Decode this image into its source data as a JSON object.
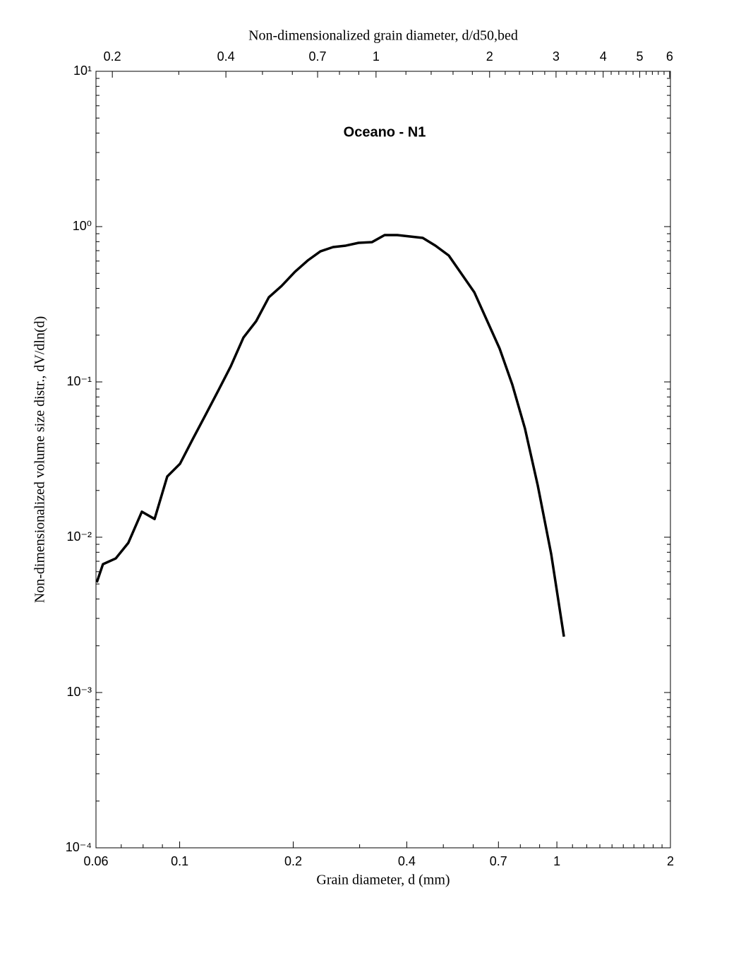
{
  "chart_data": {
    "type": "line",
    "title": "Oceano - N1",
    "xlabel": "Grain diameter, d (mm)",
    "x2label": "Non-dimensionalized grain diameter, d/d50,bed",
    "ylabel": "Non-dimensionalized volume size distr., dV/dln(d)",
    "xscale": "log",
    "yscale": "log",
    "xlim": [
      0.06,
      2
    ],
    "xticks": [
      0.06,
      0.1,
      0.2,
      0.4,
      0.7,
      1,
      2
    ],
    "xminorticks": [
      0.07,
      0.08,
      0.09,
      0.3,
      0.5,
      0.6,
      0.8,
      0.9,
      1.1,
      1.2,
      1.3,
      1.4,
      1.5,
      1.6,
      1.7,
      1.8,
      1.9
    ],
    "x2lim": [
      0.181,
      6.03
    ],
    "x2ticks": [
      0.2,
      0.4,
      0.7,
      1,
      2,
      3,
      4,
      5,
      6
    ],
    "x2minorticks": [
      0.3,
      0.5,
      0.6,
      0.8,
      0.9,
      1.2,
      1.4,
      1.6,
      1.8,
      2.2,
      2.4,
      2.6,
      2.8,
      3.2,
      3.4,
      3.6,
      3.8,
      4.2,
      4.4,
      4.6,
      4.8,
      5.2,
      5.4,
      5.6,
      5.8
    ],
    "ylim": [
      0.0001,
      10
    ],
    "yticks": [
      {
        "value": 0.0001,
        "label": "10⁻⁴"
      },
      {
        "value": 0.001,
        "label": "10⁻³"
      },
      {
        "value": 0.01,
        "label": "10⁻²"
      },
      {
        "value": 0.1,
        "label": "10⁻¹"
      },
      {
        "value": 1,
        "label": "10⁰"
      },
      {
        "value": 10,
        "label": "10¹"
      }
    ],
    "yminorticks": [
      0.0002,
      0.0003,
      0.0004,
      0.0005,
      0.0006,
      0.0007,
      0.0008,
      0.0009,
      0.002,
      0.003,
      0.004,
      0.005,
      0.006,
      0.007,
      0.008,
      0.009,
      0.02,
      0.03,
      0.04,
      0.05,
      0.06,
      0.07,
      0.08,
      0.09,
      0.2,
      0.3,
      0.4,
      0.5,
      0.6,
      0.7,
      0.8,
      0.9,
      2,
      3,
      4,
      5,
      6,
      7,
      8,
      9
    ],
    "x": [
      0.0603,
      0.0626,
      0.0677,
      0.0731,
      0.0794,
      0.0858,
      0.0927,
      0.1002,
      0.1083,
      0.117,
      0.1264,
      0.1366,
      0.1476,
      0.1595,
      0.1724,
      0.1863,
      0.2022,
      0.2185,
      0.2361,
      0.2551,
      0.2757,
      0.298,
      0.3233,
      0.3494,
      0.3776,
      0.408,
      0.441,
      0.4765,
      0.517,
      0.604,
      0.705,
      0.762,
      0.823,
      0.89,
      0.966,
      1.044
    ],
    "series": [
      {
        "color": "#000000",
        "values": [
          0.00512,
          0.0067,
          0.0073,
          0.0092,
          0.0146,
          0.0131,
          0.0246,
          0.0297,
          0.0428,
          0.061,
          0.0873,
          0.126,
          0.193,
          0.246,
          0.351,
          0.415,
          0.512,
          0.605,
          0.693,
          0.738,
          0.754,
          0.786,
          0.794,
          0.882,
          0.882,
          0.864,
          0.846,
          0.754,
          0.651,
          0.378,
          0.164,
          0.0959,
          0.0501,
          0.0215,
          0.00778,
          0.00229
        ]
      }
    ]
  }
}
